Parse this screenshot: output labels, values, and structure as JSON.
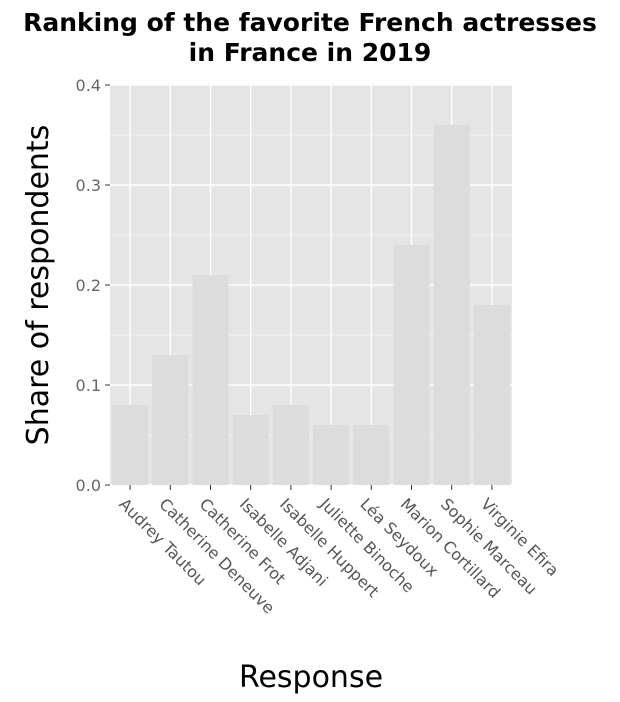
{
  "chart_data": {
    "type": "bar",
    "title_line1": "Ranking of the favorite French actresses",
    "title_line2": "in France in 2019",
    "xlabel": "Response",
    "ylabel": "Share of respondents",
    "categories": [
      "Audrey Tautou",
      "Catherine Deneuve",
      "Catherine Frot",
      "Isabelle Adjani",
      "Isabelle Huppert",
      "Juliette Binoche",
      "Léa Seydoux",
      "Marion Cortillard",
      "Sophie Marceau",
      "Virginie Efira"
    ],
    "values": [
      0.08,
      0.13,
      0.21,
      0.07,
      0.08,
      0.06,
      0.06,
      0.24,
      0.36,
      0.18
    ],
    "ylim": [
      0,
      0.4
    ],
    "yticks": [
      "0.0",
      "0.1",
      "0.2",
      "0.3",
      "0.4"
    ],
    "grid": true,
    "colors": {
      "panel": "#e5e5e5",
      "grid_major": "#ffffff",
      "bar": "#dcdcdc"
    }
  }
}
